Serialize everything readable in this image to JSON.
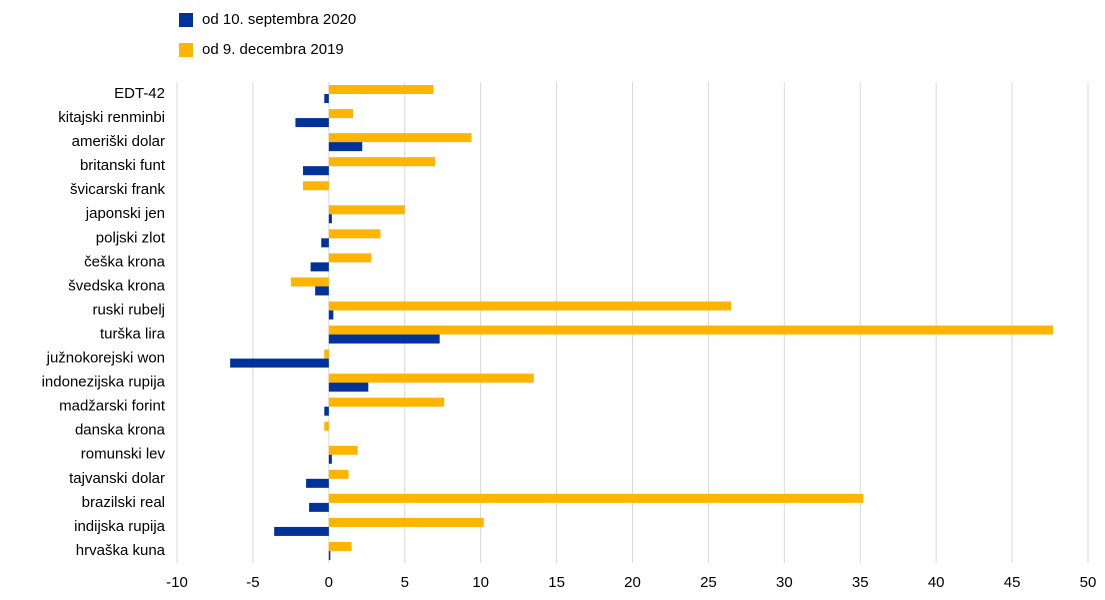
{
  "chart_data": {
    "type": "hbar",
    "categories": [
      "EDT-42",
      "kitajski renminbi",
      "ameriški dolar",
      "britanski funt",
      "švicarski frank",
      "japonski jen",
      "poljski zlot",
      "češka krona",
      "švedska krona",
      "ruski rubelj",
      "turška lira",
      "južnokorejski won",
      "indonezijska rupija",
      "madžarski forint",
      "danska krona",
      "romunski lev",
      "tajvanski dolar",
      "brazilski real",
      "indijska rupija",
      "hrvaška kuna"
    ],
    "series": [
      {
        "name": "od 10. septembra 2020",
        "color": "#003299",
        "values": [
          -0.3,
          -2.2,
          2.2,
          -1.7,
          0,
          0.2,
          -0.5,
          -1.2,
          -0.9,
          0.3,
          7.3,
          -6.5,
          2.6,
          -0.3,
          0,
          0.2,
          -1.5,
          -1.3,
          -3.6,
          0.1
        ]
      },
      {
        "name": "od 9. decembra 2019",
        "color": "#ffb400",
        "values": [
          6.9,
          1.6,
          9.4,
          7.0,
          -1.7,
          5.0,
          3.4,
          2.8,
          -2.5,
          26.5,
          47.7,
          -0.3,
          13.5,
          7.6,
          -0.3,
          1.9,
          1.3,
          35.2,
          10.2,
          1.5
        ]
      }
    ],
    "xlim": [
      -10,
      50
    ],
    "xticks": [
      -10,
      -5,
      0,
      5,
      10,
      15,
      20,
      25,
      30,
      35,
      40,
      45,
      50
    ],
    "grid": true
  }
}
